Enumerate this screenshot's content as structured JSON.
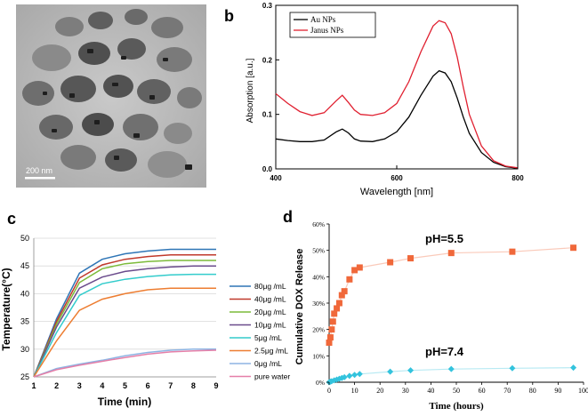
{
  "panels": {
    "a": "a",
    "b": "b",
    "c": "c",
    "d": "d"
  },
  "image_a": {
    "scale_bar_label": "200 nm"
  },
  "chart_data": [
    {
      "panel": "b",
      "type": "line",
      "title": "",
      "xlabel": "Wavelength [nm]",
      "ylabel": "Absorption [a.u.]",
      "xlim": [
        400,
        800
      ],
      "ylim": [
        0.0,
        0.3
      ],
      "xticks": [
        "400",
        "600",
        "800"
      ],
      "yticks": [
        "0.0",
        "0.1",
        "0.2",
        "0.3"
      ],
      "legend_position": "top-left",
      "series": [
        {
          "name": "Au NPs",
          "color": "#000000",
          "x": [
            400,
            420,
            440,
            460,
            480,
            500,
            510,
            520,
            530,
            540,
            560,
            580,
            600,
            620,
            640,
            660,
            670,
            680,
            690,
            700,
            710,
            720,
            740,
            760,
            780,
            800
          ],
          "y": [
            0.055,
            0.052,
            0.05,
            0.05,
            0.053,
            0.068,
            0.073,
            0.066,
            0.055,
            0.051,
            0.05,
            0.055,
            0.068,
            0.095,
            0.135,
            0.17,
            0.18,
            0.176,
            0.16,
            0.13,
            0.095,
            0.065,
            0.03,
            0.012,
            0.004,
            0.001
          ]
        },
        {
          "name": "Janus NPs",
          "color": "#e02030",
          "x": [
            400,
            420,
            440,
            460,
            480,
            500,
            510,
            520,
            530,
            540,
            560,
            580,
            600,
            620,
            640,
            660,
            670,
            680,
            690,
            700,
            710,
            720,
            740,
            760,
            780,
            800
          ],
          "y": [
            0.138,
            0.12,
            0.105,
            0.098,
            0.103,
            0.125,
            0.135,
            0.122,
            0.108,
            0.1,
            0.098,
            0.103,
            0.12,
            0.16,
            0.215,
            0.262,
            0.272,
            0.268,
            0.248,
            0.205,
            0.15,
            0.1,
            0.042,
            0.015,
            0.005,
            0.002
          ]
        }
      ]
    },
    {
      "panel": "c",
      "type": "line",
      "title": "",
      "xlabel": "Time (min)",
      "ylabel": "Temperature(°C)",
      "xlim": [
        1,
        9
      ],
      "ylim": [
        25,
        50
      ],
      "xticks": [
        "1",
        "2",
        "3",
        "4",
        "5",
        "6",
        "7",
        "8",
        "9"
      ],
      "yticks": [
        "25",
        "30",
        "35",
        "40",
        "45",
        "50"
      ],
      "legend_position": "right",
      "categories": [
        1,
        2,
        3,
        4,
        5,
        6,
        7,
        8,
        9
      ],
      "series": [
        {
          "name": "80μg /mL",
          "color": "#2e75b6",
          "values": [
            25,
            35.5,
            43.7,
            46.2,
            47.2,
            47.7,
            48.0,
            48.0,
            48.0
          ]
        },
        {
          "name": "40μg /mL",
          "color": "#c0392b",
          "values": [
            25,
            35.0,
            42.8,
            45.2,
            46.2,
            46.7,
            47.0,
            47.0,
            47.0
          ]
        },
        {
          "name": "20μg /mL",
          "color": "#7cbb3a",
          "values": [
            25,
            34.5,
            42.0,
            44.5,
            45.4,
            45.8,
            46.0,
            46.0,
            46.0
          ]
        },
        {
          "name": "10μg /mL",
          "color": "#6a4b8c",
          "values": [
            25,
            34.0,
            41.0,
            43.0,
            44.0,
            44.5,
            44.8,
            45.0,
            45.0
          ]
        },
        {
          "name": "5μg /mL",
          "color": "#33cccc",
          "values": [
            25,
            33.0,
            39.7,
            41.8,
            42.6,
            43.1,
            43.4,
            43.5,
            43.5
          ]
        },
        {
          "name": "2.5μg /mL",
          "color": "#ed7d31",
          "values": [
            25,
            31.5,
            37.0,
            39.0,
            40.0,
            40.7,
            41.0,
            41.0,
            41.0
          ]
        },
        {
          "name": "0μg /mL",
          "color": "#8eb4e3",
          "values": [
            25,
            26.5,
            27.3,
            28.0,
            28.8,
            29.4,
            29.8,
            30.0,
            30.0
          ]
        },
        {
          "name": "pure water",
          "color": "#e57fa8",
          "values": [
            25,
            26.3,
            27.1,
            27.8,
            28.5,
            29.1,
            29.5,
            29.7,
            29.8
          ]
        }
      ]
    },
    {
      "panel": "d",
      "type": "scatter",
      "title": "",
      "xlabel": "Time (hours)",
      "ylabel": "Cumulative DOX  Release",
      "xlim": [
        0,
        100
      ],
      "ylim": [
        0,
        60
      ],
      "xticks": [
        "0",
        "10",
        "20",
        "30",
        "40",
        "50",
        "60",
        "70",
        "80",
        "90",
        "100"
      ],
      "yticks": [
        "0%",
        "10%",
        "20%",
        "30%",
        "40%",
        "50%",
        "60%"
      ],
      "annotations": [
        "pH=5.5",
        "pH=7.4"
      ],
      "series": [
        {
          "name": "pH=5.5",
          "color": "#f0683a",
          "marker": "square",
          "x": [
            0,
            0.5,
            1,
            1.5,
            2,
            3,
            4,
            5,
            6,
            8,
            10,
            12,
            24,
            32,
            48,
            72,
            96
          ],
          "y": [
            15,
            17,
            20,
            23,
            26,
            28,
            30,
            33,
            34.5,
            39,
            42.5,
            43.5,
            45.5,
            47,
            49,
            49.5,
            51
          ]
        },
        {
          "name": "pH=7.4",
          "color": "#33c3dd",
          "marker": "diamond",
          "x": [
            0,
            0.5,
            1,
            2,
            3,
            4,
            5,
            6,
            8,
            10,
            12,
            24,
            32,
            48,
            72,
            96
          ],
          "y": [
            0,
            0.2,
            0.4,
            0.7,
            1.0,
            1.3,
            1.6,
            1.9,
            2.4,
            2.8,
            3.1,
            4.0,
            4.5,
            5.0,
            5.3,
            5.5
          ]
        }
      ]
    }
  ]
}
